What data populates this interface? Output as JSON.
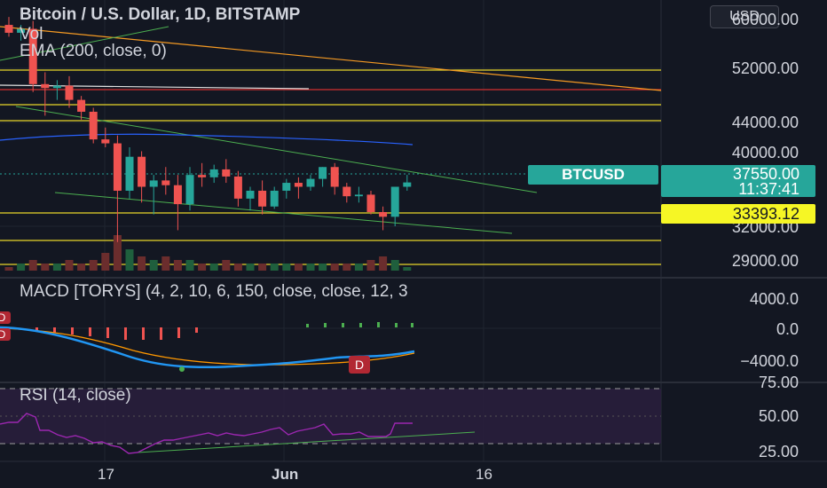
{
  "header": {
    "title": "Bitcoin / U.S. Dollar, 1D, BITSTAMP",
    "indicators": [
      "Vol",
      "EMA (200, close, 0)"
    ],
    "currency_button": "USD"
  },
  "price_axis": {
    "ticks": [
      "60000.00",
      "52000.00",
      "44000.00",
      "40000.00",
      "32000.00",
      "29000.00"
    ]
  },
  "labels": {
    "symbol": "BTCUSD",
    "last_price": "37550.00",
    "countdown": "11:37:41",
    "level_price": "33393.12"
  },
  "macd": {
    "legend": "MACD [TORYS] (4, 2, 10, 6, 150, close, close, 12, 3",
    "ticks": [
      "4000.0",
      "0.0",
      "−4000.0"
    ],
    "marker": "D",
    "left_markers": [
      "D",
      "D"
    ]
  },
  "rsi": {
    "legend": "RSI (14, close)",
    "ticks": [
      "75.00",
      "50.00",
      "25.00"
    ]
  },
  "date_axis": {
    "ticks": [
      "17",
      "Jun",
      "16"
    ]
  },
  "colors": {
    "background": "#131722",
    "up": "#26a69a",
    "down": "#ef5350",
    "yellow_lines": "#e8d52a",
    "trend_green": "#4caf50",
    "orange_trend": "#f59a23",
    "ema_blue": "#2962ff",
    "macd_line": "#2196f3",
    "signal_line": "#ff9800",
    "rsi_line": "#9c27b0",
    "rsi_band": "#2a1f3d"
  },
  "chart_data": {
    "type": "candlestick",
    "title": "Bitcoin / U.S. Dollar, 1D, BITSTAMP",
    "ylim": [
      28000,
      61000
    ],
    "last_price": 37550.0,
    "horizontal_levels": [
      52000,
      45800,
      44200,
      33393.12,
      31000,
      28800
    ],
    "candles": [
      {
        "o": 57500,
        "h": 58500,
        "l": 56000,
        "c": 56500
      },
      {
        "o": 56500,
        "h": 57500,
        "l": 55500,
        "c": 57000
      },
      {
        "o": 57000,
        "h": 58000,
        "l": 49000,
        "c": 50000
      },
      {
        "o": 50000,
        "h": 51500,
        "l": 46000,
        "c": 49500
      },
      {
        "o": 49500,
        "h": 50500,
        "l": 48000,
        "c": 49800
      },
      {
        "o": 49800,
        "h": 51000,
        "l": 47000,
        "c": 48000
      },
      {
        "o": 48000,
        "h": 48500,
        "l": 45500,
        "c": 46500
      },
      {
        "o": 46500,
        "h": 47000,
        "l": 42500,
        "c": 43000
      },
      {
        "o": 43000,
        "h": 44500,
        "l": 42000,
        "c": 42500
      },
      {
        "o": 42500,
        "h": 43500,
        "l": 30000,
        "c": 36500
      },
      {
        "o": 36500,
        "h": 42000,
        "l": 35500,
        "c": 40800
      },
      {
        "o": 40800,
        "h": 41500,
        "l": 35000,
        "c": 37000
      },
      {
        "o": 37000,
        "h": 38500,
        "l": 33500,
        "c": 37800
      },
      {
        "o": 37800,
        "h": 39500,
        "l": 36000,
        "c": 37200
      },
      {
        "o": 37200,
        "h": 38500,
        "l": 31500,
        "c": 34800
      },
      {
        "o": 34800,
        "h": 39500,
        "l": 34000,
        "c": 38500
      },
      {
        "o": 38500,
        "h": 40000,
        "l": 37000,
        "c": 38200
      },
      {
        "o": 38200,
        "h": 39800,
        "l": 37500,
        "c": 39200
      },
      {
        "o": 39200,
        "h": 40500,
        "l": 37500,
        "c": 38300
      },
      {
        "o": 38300,
        "h": 39000,
        "l": 34500,
        "c": 35500
      },
      {
        "o": 35500,
        "h": 37000,
        "l": 34000,
        "c": 36500
      },
      {
        "o": 36500,
        "h": 37800,
        "l": 33500,
        "c": 34500
      },
      {
        "o": 34500,
        "h": 37000,
        "l": 34200,
        "c": 36500
      },
      {
        "o": 36500,
        "h": 38000,
        "l": 35500,
        "c": 37500
      },
      {
        "o": 37500,
        "h": 38200,
        "l": 35500,
        "c": 37000
      },
      {
        "o": 37000,
        "h": 38500,
        "l": 36500,
        "c": 38000
      },
      {
        "o": 38000,
        "h": 39500,
        "l": 37000,
        "c": 39500
      },
      {
        "o": 39500,
        "h": 40000,
        "l": 36000,
        "c": 37000
      },
      {
        "o": 37000,
        "h": 37500,
        "l": 35000,
        "c": 35800
      },
      {
        "o": 35800,
        "h": 37000,
        "l": 35000,
        "c": 36000
      },
      {
        "o": 36000,
        "h": 36500,
        "l": 33500,
        "c": 33800
      },
      {
        "o": 33800,
        "h": 34500,
        "l": 31500,
        "c": 33200
      },
      {
        "o": 33200,
        "h": 37000,
        "l": 32000,
        "c": 37000
      },
      {
        "o": 37000,
        "h": 38500,
        "l": 36500,
        "c": 37550
      }
    ],
    "volume": [
      1,
      2,
      3,
      2,
      2,
      3,
      2,
      3,
      5,
      10,
      6,
      4,
      3,
      4,
      3,
      3,
      2,
      2,
      3,
      2,
      2,
      2,
      2,
      2,
      2,
      2,
      2,
      2,
      2,
      2,
      3,
      4,
      3,
      1
    ]
  }
}
